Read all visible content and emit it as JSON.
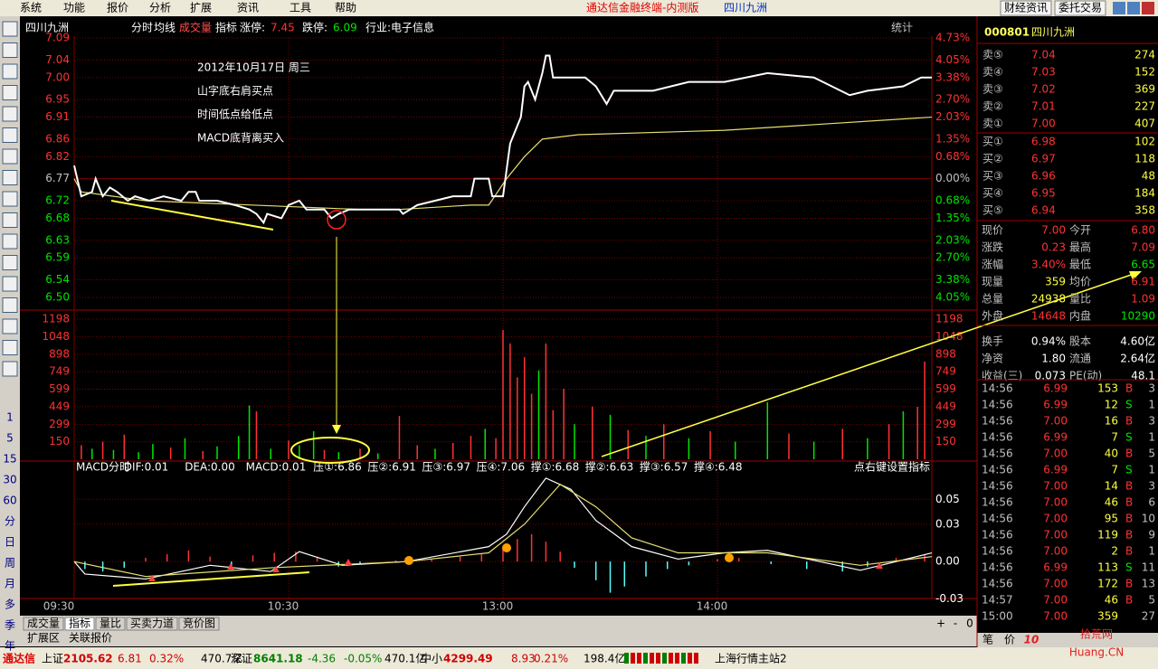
{
  "menu": [
    "系统",
    "功能",
    "报价",
    "分析",
    "扩展",
    "资讯",
    "工具",
    "帮助"
  ],
  "window_title": "通达信金融终端-内测版",
  "window_stock": "四川九洲",
  "top_buttons": [
    "财经资讯",
    "委托交易"
  ],
  "side_periods": [
    "1",
    "5",
    "15",
    "30",
    "60",
    "分",
    "日",
    "周",
    "月",
    "多",
    "季",
    "年"
  ],
  "chart_header": {
    "stock": "四川九洲",
    "items": [
      "分时",
      "均线",
      "成交量",
      "指标"
    ],
    "limit_up_label": "涨停:",
    "limit_up": "7.45",
    "limit_down_label": "跌停:",
    "limit_down": "6.09",
    "industry": "行业:电子信息",
    "stat": "统计"
  },
  "price_panel": {
    "ylim": [
      6.5,
      7.09
    ],
    "xlim": [
      0,
      240
    ],
    "yticks": [
      {
        "value": 7.09,
        "label": "7.09"
      },
      {
        "value": 7.04,
        "label": "7.04"
      },
      {
        "value": 7.0,
        "label": "7.00"
      },
      {
        "value": 6.95,
        "label": "6.95"
      },
      {
        "value": 6.91,
        "label": "6.91"
      },
      {
        "value": 6.86,
        "label": "6.86"
      },
      {
        "value": 6.82,
        "label": "6.82"
      },
      {
        "value": 6.77,
        "label": "6.77"
      },
      {
        "value": 6.72,
        "label": "6.72"
      },
      {
        "value": 6.68,
        "label": "6.68"
      },
      {
        "value": 6.63,
        "label": "6.63"
      },
      {
        "value": 6.59,
        "label": "6.59"
      },
      {
        "value": 6.54,
        "label": "6.54"
      },
      {
        "value": 6.5,
        "label": "6.50"
      }
    ],
    "pct_ticks": [
      "4.73%",
      "4.05%",
      "3.38%",
      "2.70%",
      "2.03%",
      "1.35%",
      "0.68%",
      "0.00%",
      "0.68%",
      "1.35%",
      "2.03%",
      "2.70%",
      "3.38%",
      "4.05%"
    ],
    "row_colors": [
      "#ff3232",
      "#ff3232",
      "#ff3232",
      "#ff3232",
      "#ff3232",
      "#ff3232",
      "#ff3232",
      "#c0c0c0",
      "#00e600",
      "#00e600",
      "#00e600",
      "#00e600",
      "#00e600",
      "#00e600"
    ],
    "price": {
      "color": "#ffffff",
      "x": [
        0,
        2,
        5,
        6,
        8,
        10,
        12,
        15,
        17,
        21,
        25,
        30,
        32,
        34,
        35,
        40,
        45,
        49,
        51,
        53,
        54,
        58,
        60,
        63,
        65,
        70,
        72,
        74,
        77,
        91,
        92,
        96,
        101,
        106,
        111,
        112,
        116,
        117,
        120,
        122,
        125,
        126,
        127,
        129,
        131,
        132,
        133,
        134,
        137,
        143,
        146,
        149,
        151,
        162,
        172,
        182,
        194,
        207,
        217,
        222,
        232,
        237,
        240
      ],
      "values": [
        6.8,
        6.73,
        6.74,
        6.77,
        6.73,
        6.75,
        6.74,
        6.72,
        6.73,
        6.72,
        6.73,
        6.72,
        6.74,
        6.74,
        6.72,
        6.72,
        6.71,
        6.7,
        6.69,
        6.67,
        6.69,
        6.68,
        6.71,
        6.72,
        6.7,
        6.7,
        6.68,
        6.69,
        6.7,
        6.7,
        6.69,
        6.71,
        6.72,
        6.73,
        6.73,
        6.77,
        6.77,
        6.73,
        6.73,
        6.85,
        6.91,
        6.98,
        6.99,
        6.95,
        7.01,
        7.05,
        7.05,
        7.0,
        7.0,
        7.0,
        6.98,
        6.94,
        6.97,
        6.97,
        6.99,
        6.99,
        7.01,
        7.0,
        6.96,
        6.97,
        6.98,
        7.0,
        7.0
      ]
    },
    "average": {
      "color": "#e8e070",
      "x": [
        0,
        2,
        20,
        80,
        91,
        111,
        116,
        121,
        126,
        131,
        141,
        182,
        240
      ],
      "values": [
        6.77,
        6.74,
        6.72,
        6.7,
        6.7,
        6.71,
        6.71,
        6.77,
        6.82,
        6.86,
        6.87,
        6.88,
        6.91
      ]
    }
  },
  "volume_panel": {
    "ylim": [
      0,
      1198
    ],
    "yticks": [
      1198,
      1048,
      898,
      749,
      599,
      449,
      299,
      150
    ],
    "x": [
      2,
      5,
      8,
      11,
      14,
      18,
      22,
      27,
      31,
      36,
      40,
      46,
      49,
      51,
      55,
      60,
      63,
      67,
      70,
      74,
      80,
      85,
      91,
      96,
      101,
      106,
      111,
      115,
      118,
      120,
      122,
      124,
      126,
      128,
      130,
      132,
      134,
      137,
      140,
      145,
      150,
      155,
      160,
      165,
      172,
      178,
      185,
      194,
      200,
      207,
      215,
      222,
      228,
      232,
      236,
      238
    ],
    "values": [
      120,
      90,
      150,
      80,
      210,
      60,
      130,
      100,
      180,
      70,
      110,
      200,
      460,
      410,
      90,
      160,
      120,
      240,
      80,
      60,
      90,
      50,
      370,
      120,
      90,
      140,
      200,
      260,
      180,
      1105,
      990,
      700,
      873,
      560,
      760,
      990,
      420,
      603,
      300,
      450,
      380,
      250,
      200,
      300,
      180,
      240,
      150,
      487,
      220,
      150,
      260,
      180,
      300,
      410,
      448,
      835
    ],
    "colors": [
      "#ff3232",
      "#00e600",
      "#ff3232",
      "#00e600",
      "#ff3232",
      "#00e600",
      "#00e600",
      "#ff3232",
      "#00e600",
      "#ff3232",
      "#00e600",
      "#00e600",
      "#00e600",
      "#ff3232",
      "#00e600",
      "#ff3232",
      "#00e600",
      "#00e600",
      "#ff3232",
      "#00e600",
      "#ff3232",
      "#00e600",
      "#ff3232",
      "#ff3232",
      "#00e600",
      "#ff3232",
      "#ff3232",
      "#00e600",
      "#ff3232",
      "#ff3232",
      "#ff3232",
      "#ff3232",
      "#ff3232",
      "#ff3232",
      "#00e600",
      "#ff3232",
      "#ff3232",
      "#ff3232",
      "#00e600",
      "#ff3232",
      "#00e600",
      "#ff3232",
      "#00e600",
      "#ff3232",
      "#00e600",
      "#ff3232",
      "#00e600",
      "#00e600",
      "#ff3232",
      "#00e600",
      "#ff3232",
      "#00e600",
      "#ff3232",
      "#00e600",
      "#ff3232",
      "#ff3232"
    ]
  },
  "macd_panel": {
    "header": [
      "MACD分时",
      "DIF:0.01",
      "DEA:0.00",
      "MACD:0.01",
      "压①:6.86",
      "压②:6.91",
      "压③:6.97",
      "压④:7.06",
      "撑①:6.68",
      "撑②:6.63",
      "撑③:6.57",
      "撑④:6.48"
    ],
    "hint": "点右键设置指标",
    "ylim": [
      -0.034,
      0.072
    ],
    "yticks": [
      0.05,
      0.03,
      {
        "value": 0,
        "label": "0.00"
      },
      -0.03
    ],
    "dif": {
      "color": "#ffffff",
      "x": [
        0,
        3,
        20,
        38,
        55,
        63,
        75,
        93,
        116,
        121,
        126,
        132,
        139,
        146,
        156,
        169,
        182,
        194,
        220,
        240
      ],
      "values": [
        0,
        -0.01,
        -0.014,
        -0.003,
        -0.008,
        0.008,
        -0.003,
        0,
        0.012,
        0.022,
        0.044,
        0.067,
        0.058,
        0.033,
        0.012,
        0.002,
        0.007,
        0.009,
        -0.007,
        0.007
      ]
    },
    "dea": {
      "color": "#e8e070",
      "x": [
        0,
        20,
        55,
        93,
        116,
        126,
        136,
        146,
        156,
        169,
        194,
        220,
        240
      ],
      "values": [
        0,
        -0.012,
        -0.005,
        0,
        0.007,
        0.03,
        0.062,
        0.044,
        0.019,
        0.007,
        0.007,
        -0.003,
        0.004
      ]
    },
    "hist": {
      "x": [
        3,
        8,
        14,
        20,
        26,
        32,
        38,
        44,
        50,
        56,
        62,
        68,
        74,
        80,
        90,
        100,
        108,
        114,
        120,
        124,
        128,
        132,
        136,
        140,
        146,
        150,
        154,
        160,
        166,
        172,
        180,
        186,
        195,
        205,
        215,
        222,
        230,
        238
      ],
      "values": [
        -0.006,
        -0.008,
        -0.005,
        0.003,
        0.006,
        0.009,
        0.004,
        -0.004,
        0.005,
        0.007,
        0.008,
        0.004,
        -0.004,
        -0.002,
        0.001,
        0.002,
        0.004,
        0.006,
        0.01,
        0.018,
        0.022,
        0.016,
        0.008,
        -0.005,
        -0.015,
        -0.025,
        -0.02,
        -0.012,
        -0.006,
        -0.003,
        0.002,
        0.003,
        -0.002,
        -0.006,
        -0.008,
        -0.004,
        0.003,
        0.006
      ],
      "up_color": "#ff3232",
      "down_color": "#54ffff"
    }
  },
  "time_ticks": [
    {
      "value": 0,
      "label": "09:30"
    },
    {
      "value": 60,
      "label": "10:30"
    },
    {
      "value": 120,
      "label": "13:00"
    },
    {
      "value": 180,
      "label": "14:00"
    }
  ],
  "annotations": [
    "2012年10月17日  周三",
    "山字底右肩买点",
    "时间低点给低点",
    "MACD底背离买入"
  ],
  "bottom_tabs": [
    "成交量",
    "指标",
    "量比",
    "买卖力道",
    "竞价图"
  ],
  "bottom_tabs2": [
    "扩展区",
    "关联报价"
  ],
  "zoom": [
    "+",
    "-",
    "0"
  ],
  "quote": {
    "code": "000801",
    "name": "四川九洲",
    "sells": [
      [
        "卖⑤",
        "7.04",
        "274"
      ],
      [
        "卖④",
        "7.03",
        "152"
      ],
      [
        "卖③",
        "7.02",
        "369"
      ],
      [
        "卖②",
        "7.01",
        "227"
      ],
      [
        "卖①",
        "7.00",
        "407"
      ]
    ],
    "buys": [
      [
        "买①",
        "6.98",
        "102"
      ],
      [
        "买②",
        "6.97",
        "118"
      ],
      [
        "买③",
        "6.96",
        "48"
      ],
      [
        "买④",
        "6.95",
        "184"
      ],
      [
        "买⑤",
        "6.94",
        "358"
      ]
    ],
    "stats": [
      [
        "现价",
        "7.00",
        "今开",
        "6.80"
      ],
      [
        "涨跌",
        "0.23",
        "最高",
        "7.09"
      ],
      [
        "涨幅",
        "3.40%",
        "最低",
        "6.65"
      ],
      [
        "现量",
        "359",
        "均价",
        "6.91"
      ],
      [
        "总量",
        "24938",
        "量比",
        "1.09"
      ],
      [
        "外盘",
        "14648",
        "内盘",
        "10290"
      ],
      [
        "换手",
        "0.94%",
        "股本",
        "4.60亿"
      ],
      [
        "净资",
        "1.80",
        "流通",
        "2.64亿"
      ],
      [
        "收益(三)",
        "0.073",
        "PE(动)",
        "48.1"
      ]
    ],
    "ticks": [
      [
        "14:56",
        "6.99",
        "153",
        "B",
        "3"
      ],
      [
        "14:56",
        "6.99",
        "12",
        "S",
        "1"
      ],
      [
        "14:56",
        "7.00",
        "16",
        "B",
        "3"
      ],
      [
        "14:56",
        "6.99",
        "7",
        "S",
        "1"
      ],
      [
        "14:56",
        "7.00",
        "40",
        "B",
        "5"
      ],
      [
        "14:56",
        "6.99",
        "7",
        "S",
        "1"
      ],
      [
        "14:56",
        "7.00",
        "14",
        "B",
        "3"
      ],
      [
        "14:56",
        "7.00",
        "46",
        "B",
        "6"
      ],
      [
        "14:56",
        "7.00",
        "95",
        "B",
        "10"
      ],
      [
        "14:56",
        "7.00",
        "119",
        "B",
        "9"
      ],
      [
        "14:56",
        "7.00",
        "2",
        "B",
        "1"
      ],
      [
        "14:56",
        "6.99",
        "113",
        "S",
        "11"
      ],
      [
        "14:56",
        "7.00",
        "172",
        "B",
        "13"
      ],
      [
        "14:57",
        "7.00",
        "46",
        "B",
        "5"
      ],
      [
        "15:00",
        "7.00",
        "359",
        "",
        "27"
      ]
    ],
    "tabs": [
      "笔",
      "价"
    ]
  },
  "status": {
    "brand": "通达信",
    "indices": [
      [
        "上证",
        "2105.62",
        "6.81",
        "0.32%",
        "470.7亿"
      ],
      [
        "深证",
        "8641.18",
        "-4.36",
        "-0.05%",
        "470.1亿"
      ],
      [
        "中小",
        "4299.49",
        "8.93",
        "0.21%",
        "198.4亿"
      ]
    ],
    "server": "上海行情主站2"
  },
  "watermark": [
    "10",
    "拾荒网",
    "Huang.CN"
  ]
}
